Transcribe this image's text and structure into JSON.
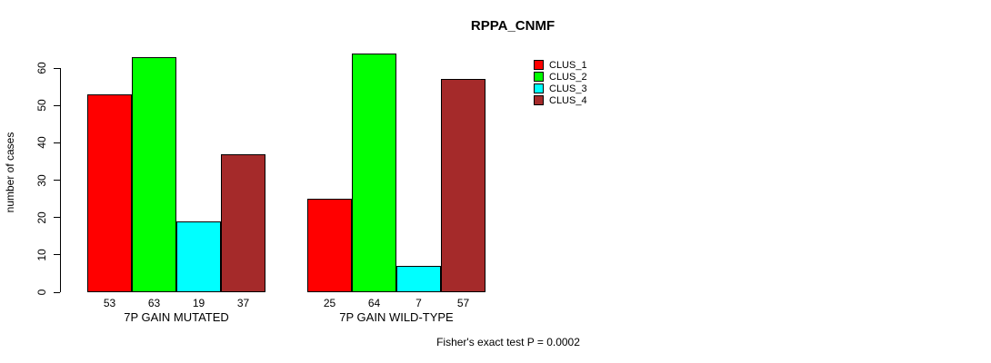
{
  "title": "RPPA_CNMF",
  "chart_data": {
    "type": "bar",
    "title": "RPPA_CNMF",
    "xlabel": "",
    "ylabel": "number of cases",
    "ylim": [
      0,
      60
    ],
    "yticks": [
      0,
      10,
      20,
      30,
      40,
      50,
      60
    ],
    "grid": false,
    "categories": [
      "7P GAIN MUTATED",
      "7P GAIN WILD-TYPE"
    ],
    "series": [
      {
        "name": "CLUS_1",
        "color": "#ff0000",
        "values": [
          53,
          25
        ]
      },
      {
        "name": "CLUS_2",
        "color": "#00ff00",
        "values": [
          63,
          64
        ]
      },
      {
        "name": "CLUS_3",
        "color": "#00ffff",
        "values": [
          19,
          7
        ]
      },
      {
        "name": "CLUS_4",
        "color": "#a52a2a",
        "values": [
          37,
          57
        ]
      }
    ],
    "bar_value_labels": {
      "7P GAIN MUTATED": [
        53,
        63,
        19,
        37
      ],
      "7P GAIN WILD-TYPE": [
        25,
        64,
        7,
        57
      ]
    },
    "legend_position": "right",
    "legend_entries": [
      "CLUS_1",
      "CLUS_2",
      "CLUS_3",
      "CLUS_4"
    ],
    "bar_border_color": "#000000",
    "annotation": "Fisher's exact test P = 0.0002"
  }
}
